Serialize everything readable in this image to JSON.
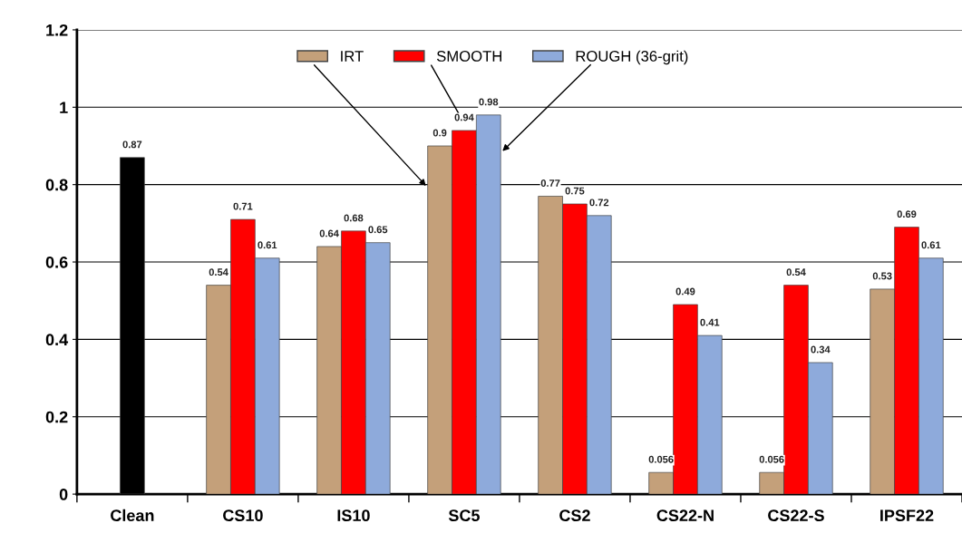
{
  "chart_data": {
    "type": "bar",
    "categories": [
      "Clean",
      "CS10",
      "IS10",
      "SC5",
      "CS2",
      "CS22-N",
      "CS22-S",
      "IPSF22"
    ],
    "series": [
      {
        "color": "#000000",
        "values": [
          0.87,
          null,
          null,
          null,
          null,
          null,
          null,
          null
        ]
      },
      {
        "name": "IRT",
        "color": "#c4a07a",
        "values": [
          null,
          0.54,
          0.64,
          0.9,
          0.77,
          0.056,
          0.056,
          0.53
        ]
      },
      {
        "name": "SMOOTH",
        "color": "#ff0000",
        "values": [
          null,
          0.71,
          0.68,
          0.94,
          0.75,
          0.49,
          0.54,
          0.69
        ]
      },
      {
        "name": "ROUGH (36-grit)",
        "color": "#8eaadb",
        "values": [
          null,
          0.61,
          0.65,
          0.98,
          0.72,
          0.41,
          0.34,
          0.61
        ]
      }
    ],
    "ylim": [
      0,
      1.2
    ],
    "yticks": [
      0,
      0.2,
      0.4,
      0.6,
      0.8,
      1,
      1.2
    ],
    "grid": "y",
    "legend": "top",
    "data_labels": true
  }
}
